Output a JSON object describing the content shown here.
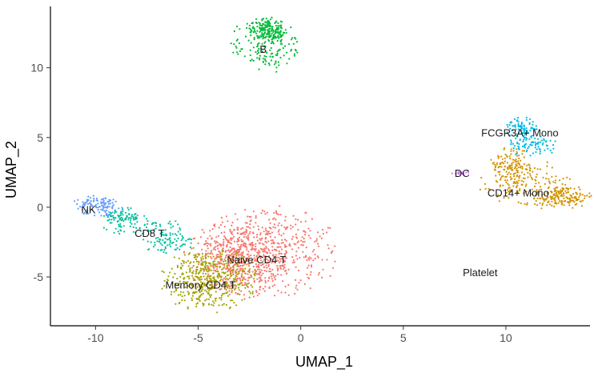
{
  "chart_data": {
    "type": "scatter",
    "title": "",
    "xlabel": "UMAP_1",
    "ylabel": "UMAP_2",
    "xlim": [
      -12.2,
      14.1
    ],
    "ylim": [
      -8.5,
      14.4
    ],
    "xticks": [
      -10,
      -5,
      0,
      5,
      10
    ],
    "yticks": [
      -5,
      0,
      5,
      10
    ],
    "grid": false,
    "legend": "none",
    "clusters": [
      {
        "name": "Naive CD4 T",
        "color": "#F8766D",
        "n": 900,
        "regions": [
          {
            "cx": -1.5,
            "cy": -3.2,
            "rx": 2.2,
            "ry": 2.1
          },
          {
            "cx": -3.2,
            "cy": -3.8,
            "rx": 1.6,
            "ry": 1.8
          }
        ],
        "label": {
          "x": -3.6,
          "y": -3.8
        }
      },
      {
        "name": "Memory CD4 T",
        "color": "#A3A500",
        "n": 450,
        "regions": [
          {
            "cx": -4.5,
            "cy": -5.2,
            "rx": 1.5,
            "ry": 1.5
          }
        ],
        "label": {
          "x": -6.6,
          "y": -5.6
        }
      },
      {
        "name": "CD14+ Mono",
        "color": "#D39200",
        "n": 420,
        "regions": [
          {
            "cx": 11.2,
            "cy": 1.6,
            "rx": 1.7,
            "ry": 1.1
          },
          {
            "cx": 12.8,
            "cy": 0.7,
            "rx": 0.9,
            "ry": 0.5
          },
          {
            "cx": 10.2,
            "cy": 2.8,
            "rx": 0.7,
            "ry": 1.0
          }
        ],
        "label": {
          "x": 9.1,
          "y": 1.0
        }
      },
      {
        "name": "B",
        "color": "#00BA38",
        "n": 320,
        "regions": [
          {
            "cx": -1.8,
            "cy": 11.6,
            "rx": 1.1,
            "ry": 1.3
          },
          {
            "cx": -1.6,
            "cy": 12.7,
            "rx": 0.6,
            "ry": 0.6
          }
        ],
        "label": {
          "x": -2.0,
          "y": 11.3
        }
      },
      {
        "name": "CD8 T",
        "color": "#00C19F",
        "n": 220,
        "regions": [
          {
            "cx": -7.6,
            "cy": -1.4,
            "rx": 1.3,
            "ry": 0.5
          },
          {
            "cx": -6.4,
            "cy": -2.5,
            "rx": 0.9,
            "ry": 0.5
          },
          {
            "cx": -8.8,
            "cy": -0.6,
            "rx": 0.6,
            "ry": 0.4
          }
        ],
        "label": {
          "x": -8.1,
          "y": -1.9
        }
      },
      {
        "name": "FCGR3A+ Mono",
        "color": "#00B9E3",
        "n": 160,
        "regions": [
          {
            "cx": 10.8,
            "cy": 5.6,
            "rx": 0.5,
            "ry": 0.6
          },
          {
            "cx": 11.3,
            "cy": 4.4,
            "rx": 0.8,
            "ry": 0.5
          }
        ],
        "label": {
          "x": 8.8,
          "y": 5.3
        }
      },
      {
        "name": "NK",
        "color": "#619CFF",
        "n": 110,
        "regions": [
          {
            "cx": -9.9,
            "cy": 0.1,
            "rx": 0.8,
            "ry": 0.5
          }
        ],
        "label": {
          "x": -10.7,
          "y": -0.2
        }
      },
      {
        "name": "DC",
        "color": "#DB72FB",
        "n": 18,
        "regions": [
          {
            "cx": 7.8,
            "cy": 2.5,
            "rx": 0.4,
            "ry": 0.12
          }
        ],
        "label": {
          "x": 7.5,
          "y": 2.4
        }
      },
      {
        "name": "Platelet",
        "color": "#FF61C3",
        "n": 0,
        "regions": [],
        "label": {
          "x": 7.9,
          "y": -4.7
        }
      }
    ]
  }
}
